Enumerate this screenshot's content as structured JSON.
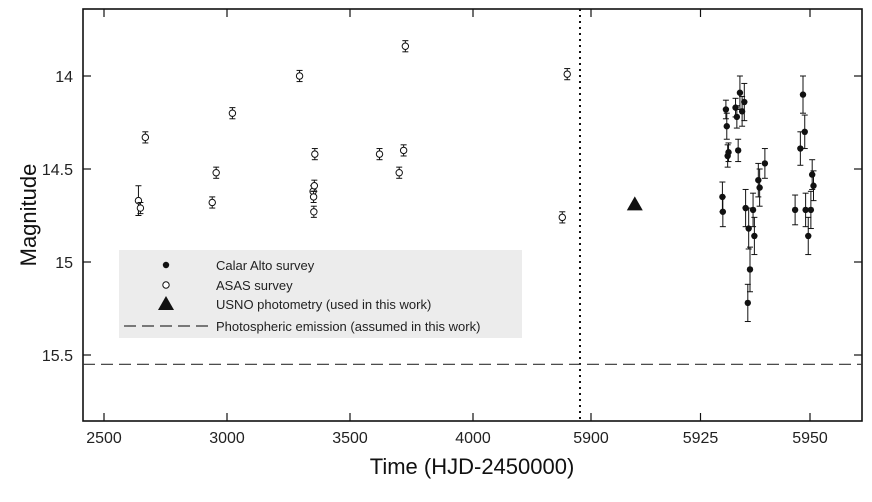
{
  "chart_data": {
    "type": "scatter",
    "xlabel": "Time (HJD-2450000)",
    "ylabel": "Magnitude",
    "y_inverted": true,
    "ylim": [
      15.6,
      13.65
    ],
    "grid": false,
    "legend_placement": "lower-left",
    "x_axis_segments": [
      {
        "xlim": [
          2400,
          4500
        ],
        "ticks": [
          2500,
          3000,
          3500,
          4000
        ],
        "tick_labels": [
          "2500",
          "3000",
          "3500",
          "4000"
        ]
      },
      {
        "xlim": [
          5900,
          5958
        ],
        "ticks": [
          5900,
          5925,
          5950
        ],
        "tick_labels": [
          "5900",
          "5925",
          "5950"
        ]
      }
    ],
    "y_ticks": [
      14,
      14.5,
      15,
      15.5
    ],
    "y_tick_labels": [
      "14",
      "14.5",
      "15",
      "15.5"
    ],
    "segment_divider": {
      "style": "dotted",
      "x": 5900
    },
    "series": [
      {
        "name": "Calar Alto survey",
        "marker": "filled-circle",
        "segment": 1,
        "x": [
          5930.0,
          5930.1,
          5930.8,
          5931.0,
          5931.2,
          5931.4,
          5933.0,
          5933.3,
          5933.6,
          5934.0,
          5934.5,
          5935.0,
          5935.3,
          5935.8,
          5936.0,
          5936.3,
          5937.0,
          5937.3,
          5938.2,
          5938.5,
          5939.7,
          5946.6,
          5947.8,
          5948.4,
          5948.8,
          5949.0,
          5949.6,
          5950.2,
          5950.5,
          5950.8
        ],
        "y": [
          14.65,
          14.73,
          14.18,
          14.27,
          14.43,
          14.41,
          14.17,
          14.22,
          14.4,
          14.09,
          14.19,
          14.14,
          14.71,
          15.22,
          14.82,
          15.04,
          14.72,
          14.86,
          14.56,
          14.6,
          14.47,
          14.72,
          14.39,
          14.1,
          14.3,
          14.72,
          14.86,
          14.72,
          14.53,
          14.59
        ],
        "yerr": [
          0.08,
          0.08,
          0.05,
          0.07,
          0.06,
          0.05,
          0.05,
          0.06,
          0.06,
          0.09,
          0.08,
          0.1,
          0.1,
          0.1,
          0.11,
          0.12,
          0.09,
          0.1,
          0.09,
          0.1,
          0.08,
          0.08,
          0.09,
          0.1,
          0.09,
          0.09,
          0.1,
          0.1,
          0.08,
          0.08
        ]
      },
      {
        "name": "ASAS survey",
        "marker": "open-circle",
        "segment": 0,
        "x": [
          2640,
          2648,
          2668,
          2940,
          2956,
          3022,
          3295,
          3350,
          3352,
          3353,
          3355,
          3357,
          3620,
          3700,
          3718,
          3725,
          4363,
          4383
        ],
        "y": [
          14.67,
          14.71,
          14.33,
          14.68,
          14.52,
          14.2,
          14.0,
          14.62,
          14.65,
          14.73,
          14.59,
          14.42,
          14.42,
          14.52,
          14.4,
          13.84,
          14.76,
          13.99
        ],
        "yerr": [
          0.08,
          0.03,
          0.03,
          0.03,
          0.03,
          0.03,
          0.03,
          0.03,
          0.03,
          0.03,
          0.03,
          0.03,
          0.03,
          0.03,
          0.03,
          0.03,
          0.03,
          0.03
        ]
      },
      {
        "name": "USNO photometry (used in this work)",
        "marker": "filled-triangle",
        "segment": 1,
        "x": [
          5910
        ],
        "y": [
          14.69
        ]
      },
      {
        "name": "Photospheric emission (assumed in this work)",
        "style": "dashed-line",
        "y_constant": 15.55
      }
    ]
  }
}
